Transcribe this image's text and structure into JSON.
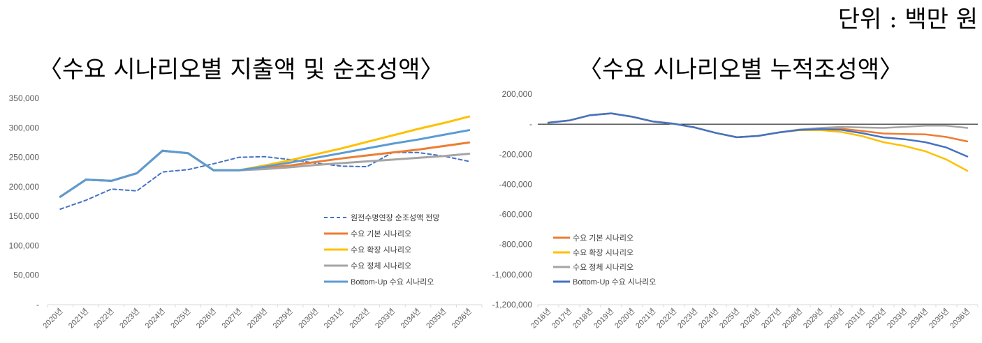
{
  "header": {
    "unit_label": "단위 : 백만 원"
  },
  "chart_data": [
    {
      "type": "line",
      "title": "〈수요 시나리오별 지출액 및 순조성액〉",
      "x": [
        "2020년",
        "2021년",
        "2022년",
        "2023년",
        "2024년",
        "2025년",
        "2026년",
        "2027년",
        "2028년",
        "2029년",
        "2030년",
        "2031년",
        "2032년",
        "2033년",
        "2034년",
        "2035년",
        "2036년"
      ],
      "ylim": [
        0,
        350000
      ],
      "yticks": [
        0,
        50000,
        100000,
        150000,
        200000,
        250000,
        300000,
        350000
      ],
      "ytick_labels": [
        "-",
        "50,000",
        "100,000",
        "150,000",
        "200,000",
        "250,000",
        "300,000",
        "350,000"
      ],
      "grid": false,
      "legend": "bottom-right",
      "series": [
        {
          "name": "원전수명연장 순조성액 전망",
          "color": "#4472C4",
          "style": "dashed",
          "values": [
            162000,
            177000,
            196000,
            193000,
            225000,
            229000,
            239000,
            250000,
            251000,
            246000,
            240000,
            235000,
            234000,
            258000,
            258000,
            252000,
            243000
          ]
        },
        {
          "name": "수요 기본 시나리오",
          "color": "#ED7D31",
          "style": "solid",
          "values": [
            183000,
            212000,
            210000,
            223000,
            261000,
            257000,
            228000,
            228000,
            232000,
            236000,
            242000,
            248000,
            253000,
            258000,
            263000,
            269000,
            275000
          ]
        },
        {
          "name": "수요 확장 시나리오",
          "color": "#FFC000",
          "style": "solid",
          "values": [
            183000,
            212000,
            210000,
            223000,
            261000,
            257000,
            228000,
            228000,
            236000,
            245000,
            255000,
            265000,
            276000,
            287000,
            298000,
            308000,
            319000
          ]
        },
        {
          "name": "수요 정체 시나리오",
          "color": "#A5A5A5",
          "style": "solid",
          "values": [
            183000,
            212000,
            210000,
            223000,
            261000,
            257000,
            228000,
            228000,
            230000,
            233000,
            237000,
            240000,
            243000,
            246000,
            249000,
            252000,
            256000
          ]
        },
        {
          "name": "Bottom-Up 수요 시나리오",
          "color": "#5B9BD5",
          "style": "solid",
          "values": [
            183000,
            212000,
            210000,
            223000,
            261000,
            257000,
            228000,
            228000,
            234000,
            241000,
            249000,
            257000,
            265000,
            273000,
            280000,
            288000,
            296000
          ]
        }
      ]
    },
    {
      "type": "line",
      "title": "〈수요 시나리오별 누적조성액〉",
      "x": [
        "2016년",
        "2017년",
        "2018년",
        "2019년",
        "2020년",
        "2021년",
        "2022년",
        "2023년",
        "2024년",
        "2025년",
        "2026년",
        "2027년",
        "2028년",
        "2029년",
        "2030년",
        "2031년",
        "2032년",
        "2033년",
        "2034년",
        "2035년",
        "2036년"
      ],
      "ylim": [
        -1200000,
        200000
      ],
      "yticks": [
        -1200000,
        -1000000,
        -800000,
        -600000,
        -400000,
        -200000,
        0,
        200000
      ],
      "ytick_labels": [
        "-1,200,000",
        "-1,000,000",
        "-800,000",
        "-600,000",
        "-400,000",
        "-200,000",
        "-",
        "200,000"
      ],
      "grid": false,
      "zero_line": true,
      "legend": "bottom-left",
      "series": [
        {
          "name": "수요 기본 시나리오",
          "color": "#ED7D31",
          "values": [
            10000,
            25000,
            60000,
            72000,
            50000,
            18000,
            3000,
            -22000,
            -58000,
            -87000,
            -78000,
            -55000,
            -38000,
            -33000,
            -30000,
            -45000,
            -62000,
            -65000,
            -68000,
            -85000,
            -115000
          ]
        },
        {
          "name": "수요 확장 시나리오",
          "color": "#FFC000",
          "values": [
            10000,
            25000,
            60000,
            72000,
            50000,
            18000,
            3000,
            -22000,
            -58000,
            -87000,
            -78000,
            -55000,
            -40000,
            -40000,
            -52000,
            -80000,
            -120000,
            -145000,
            -180000,
            -235000,
            -310000
          ]
        },
        {
          "name": "수요 정체 시나리오",
          "color": "#A5A5A5",
          "values": [
            10000,
            25000,
            60000,
            72000,
            50000,
            18000,
            3000,
            -22000,
            -58000,
            -87000,
            -78000,
            -55000,
            -35000,
            -25000,
            -18000,
            -22000,
            -25000,
            -18000,
            -10000,
            -10000,
            -25000
          ]
        },
        {
          "name": "Bottom-Up 수요 시나리오",
          "color": "#4472C4",
          "values": [
            10000,
            25000,
            60000,
            72000,
            50000,
            18000,
            3000,
            -22000,
            -58000,
            -87000,
            -78000,
            -55000,
            -38000,
            -33000,
            -38000,
            -60000,
            -88000,
            -100000,
            -120000,
            -155000,
            -215000
          ]
        }
      ]
    }
  ]
}
